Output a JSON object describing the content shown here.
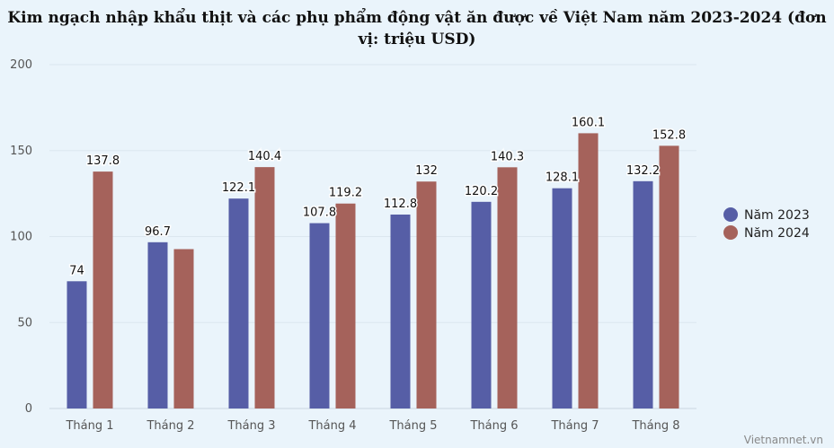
{
  "chart_data": {
    "type": "bar",
    "title": "Kim ngạch nhập khẩu thịt và các phụ phẩm động vật ăn được về Việt Nam năm 2023-2024 (đơn vị: triệu USD)",
    "categories": [
      "Tháng 1",
      "Tháng 2",
      "Tháng 3",
      "Tháng 4",
      "Tháng 5",
      "Tháng 6",
      "Tháng 7",
      "Tháng 8"
    ],
    "series": [
      {
        "name": "Năm 2023",
        "color": "#565ea6",
        "values": [
          74,
          96.7,
          122.1,
          107.8,
          112.8,
          120.2,
          128.1,
          132.2
        ]
      },
      {
        "name": "Năm 2024",
        "color": "#a5625b",
        "values": [
          137.8,
          92.7,
          140.4,
          119.2,
          132,
          140.3,
          160.1,
          152.8
        ]
      }
    ],
    "data_labels": [
      [
        "74",
        "96.7",
        "122.1",
        "107.8",
        "112.8",
        "120.2",
        "128.1",
        "132.2"
      ],
      [
        "137.8",
        "",
        "140.4",
        "119.2",
        "132",
        "140.3",
        "160.1",
        "152.8"
      ]
    ],
    "yticks": [
      "0",
      "50",
      "100",
      "150",
      "200"
    ],
    "ylim": [
      0,
      200
    ],
    "grid": true,
    "legend_position": "right"
  },
  "watermark": "Vietnamnet.vn"
}
